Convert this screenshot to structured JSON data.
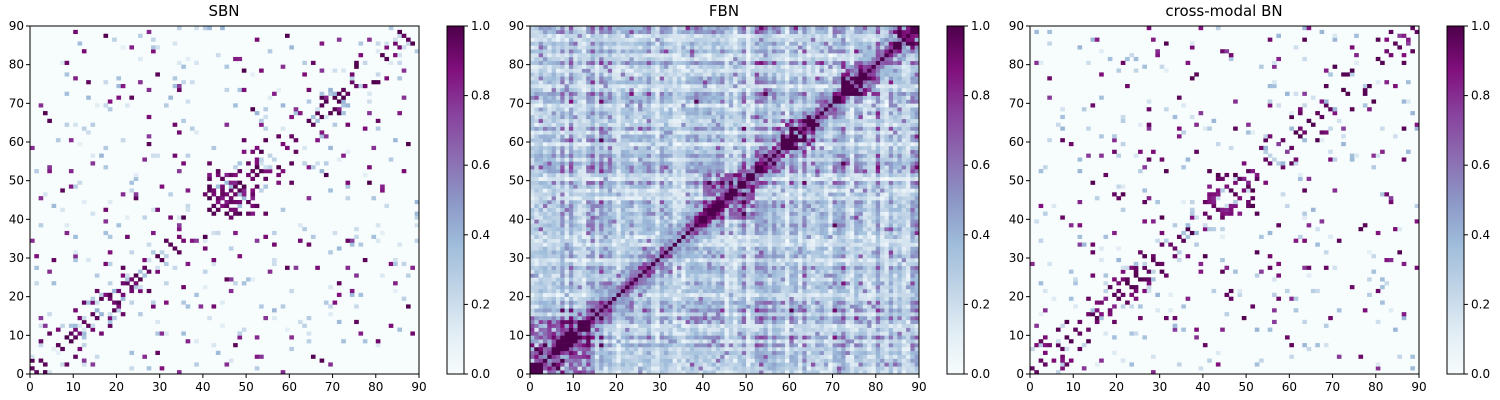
{
  "chart_data": [
    {
      "type": "heatmap",
      "title": "SBN",
      "xlim": [
        0,
        90
      ],
      "ylim": [
        0,
        90
      ],
      "xticks": [
        0,
        10,
        20,
        30,
        40,
        50,
        60,
        70,
        80,
        90
      ],
      "yticks": [
        0,
        10,
        20,
        30,
        40,
        50,
        60,
        70,
        80,
        90
      ],
      "grid": false,
      "density": "sparse",
      "colorbar": {
        "min": 0.0,
        "max": 1.0,
        "ticks": [
          "0.0",
          "0.2",
          "0.4",
          "0.6",
          "0.8",
          "1.0"
        ]
      }
    },
    {
      "type": "heatmap",
      "title": "FBN",
      "xlim": [
        0,
        90
      ],
      "ylim": [
        0,
        90
      ],
      "xticks": [
        0,
        10,
        20,
        30,
        40,
        50,
        60,
        70,
        80,
        90
      ],
      "yticks": [
        0,
        10,
        20,
        30,
        40,
        50,
        60,
        70,
        80,
        90
      ],
      "grid": false,
      "density": "dense",
      "colorbar": {
        "min": 0.0,
        "max": 1.0,
        "ticks": [
          "0.0",
          "0.2",
          "0.4",
          "0.6",
          "0.8",
          "1.0"
        ]
      }
    },
    {
      "type": "heatmap",
      "title": "cross-modal BN",
      "xlim": [
        0,
        90
      ],
      "ylim": [
        0,
        90
      ],
      "xticks": [
        0,
        10,
        20,
        30,
        40,
        50,
        60,
        70,
        80,
        90
      ],
      "yticks": [
        0,
        10,
        20,
        30,
        40,
        50,
        60,
        70,
        80,
        90
      ],
      "grid": false,
      "density": "sparse",
      "colorbar": {
        "min": 0.0,
        "max": 1.0,
        "ticks": [
          "0.0",
          "0.2",
          "0.4",
          "0.6",
          "0.8",
          "1.0"
        ]
      }
    }
  ],
  "colormap": {
    "name": "BuPu",
    "stops": [
      "#f7fcfd",
      "#e0ecf4",
      "#bfd3e6",
      "#9ebcda",
      "#8c96c6",
      "#8c6bb1",
      "#88419d",
      "#810f7c",
      "#4d004b"
    ]
  }
}
